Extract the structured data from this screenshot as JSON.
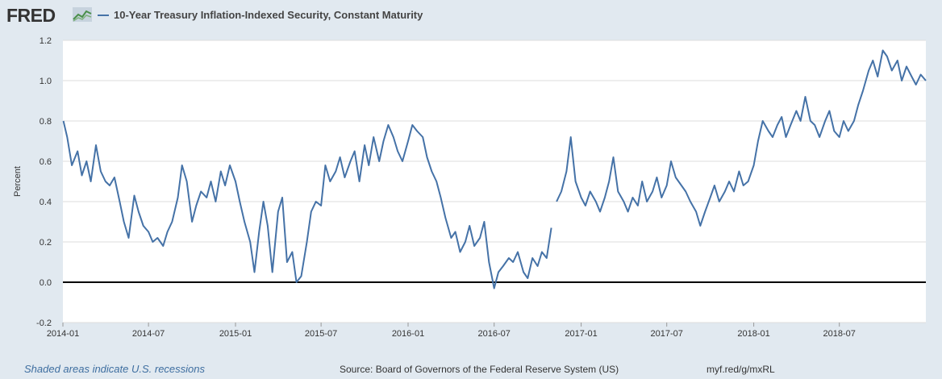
{
  "header": {
    "logo_text": "FRED",
    "logo_icon": "line-chart-icon"
  },
  "colors": {
    "series": "#4572a7",
    "background": "#e1e9f0",
    "plot_background": "#ffffff",
    "gridline": "#dddddd",
    "zero_line": "#000000",
    "recession_note": "#3e6ea0"
  },
  "chart_data": {
    "type": "line",
    "title": "",
    "xlabel": "",
    "ylabel": "Percent",
    "ylim": [
      -0.2,
      1.2
    ],
    "yticks": [
      -0.2,
      0.0,
      0.2,
      0.4,
      0.6,
      0.8,
      1.0,
      1.2
    ],
    "ytick_labels": [
      "-0.2",
      "0.0",
      "0.2",
      "0.4",
      "0.6",
      "0.8",
      "1.0",
      "1.2"
    ],
    "xlim": [
      "2014-01-01",
      "2018-12-31"
    ],
    "xticks": [
      "2014-01",
      "2014-07",
      "2015-01",
      "2015-07",
      "2016-01",
      "2016-07",
      "2017-01",
      "2017-07",
      "2018-01",
      "2018-07"
    ],
    "grid": true,
    "legend": "top-left",
    "reference_line": 0.0,
    "series": [
      {
        "name": "10-Year Treasury Inflation-Indexed Security, Constant Maturity",
        "segments": [
          {
            "x": [
              "2014-01-02",
              "2014-01-10",
              "2014-01-20",
              "2014-02-01",
              "2014-02-10",
              "2014-02-20",
              "2014-03-01",
              "2014-03-12",
              "2014-03-22",
              "2014-04-01",
              "2014-04-10",
              "2014-04-20",
              "2014-05-01",
              "2014-05-10",
              "2014-05-20",
              "2014-06-01",
              "2014-06-10",
              "2014-06-20",
              "2014-07-01",
              "2014-07-10",
              "2014-07-20",
              "2014-08-01",
              "2014-08-10",
              "2014-08-20",
              "2014-09-01",
              "2014-09-10",
              "2014-09-20",
              "2014-10-01",
              "2014-10-10",
              "2014-10-20",
              "2014-11-01",
              "2014-11-10",
              "2014-11-20",
              "2014-12-01",
              "2014-12-10",
              "2014-12-20",
              "2015-01-01",
              "2015-01-10",
              "2015-01-20",
              "2015-02-01",
              "2015-02-10",
              "2015-02-20",
              "2015-03-01",
              "2015-03-10",
              "2015-03-20",
              "2015-04-01",
              "2015-04-10",
              "2015-04-20",
              "2015-05-01",
              "2015-05-10",
              "2015-05-20",
              "2015-06-01",
              "2015-06-10",
              "2015-06-20",
              "2015-07-01",
              "2015-07-10",
              "2015-07-20",
              "2015-08-01",
              "2015-08-10",
              "2015-08-20",
              "2015-09-01",
              "2015-09-10",
              "2015-09-20",
              "2015-10-01",
              "2015-10-10",
              "2015-10-20",
              "2015-11-01",
              "2015-11-10",
              "2015-11-20",
              "2015-12-01",
              "2015-12-10",
              "2015-12-20",
              "2016-01-01",
              "2016-01-10",
              "2016-01-20",
              "2016-02-01",
              "2016-02-10",
              "2016-02-20",
              "2016-03-01",
              "2016-03-10",
              "2016-03-20",
              "2016-04-01",
              "2016-04-10",
              "2016-04-20",
              "2016-05-01",
              "2016-05-10",
              "2016-05-20",
              "2016-06-01",
              "2016-06-10",
              "2016-06-20",
              "2016-07-01",
              "2016-07-10",
              "2016-07-20",
              "2016-08-01",
              "2016-08-10",
              "2016-08-20",
              "2016-09-01",
              "2016-09-10",
              "2016-09-20",
              "2016-10-01",
              "2016-10-10",
              "2016-10-20",
              "2016-10-30"
            ],
            "y": [
              0.8,
              0.72,
              0.58,
              0.65,
              0.53,
              0.6,
              0.5,
              0.68,
              0.55,
              0.5,
              0.48,
              0.52,
              0.4,
              0.3,
              0.22,
              0.43,
              0.35,
              0.28,
              0.25,
              0.2,
              0.22,
              0.18,
              0.25,
              0.3,
              0.42,
              0.58,
              0.5,
              0.3,
              0.38,
              0.45,
              0.42,
              0.5,
              0.4,
              0.55,
              0.48,
              0.58,
              0.5,
              0.4,
              0.3,
              0.2,
              0.05,
              0.25,
              0.4,
              0.28,
              0.05,
              0.35,
              0.42,
              0.1,
              0.15,
              0.0,
              0.03,
              0.2,
              0.35,
              0.4,
              0.38,
              0.58,
              0.5,
              0.55,
              0.62,
              0.52,
              0.6,
              0.65,
              0.5,
              0.68,
              0.58,
              0.72,
              0.6,
              0.7,
              0.78,
              0.72,
              0.65,
              0.6,
              0.7,
              0.78,
              0.75,
              0.72,
              0.62,
              0.55,
              0.5,
              0.42,
              0.32,
              0.22,
              0.25,
              0.15,
              0.2,
              0.28,
              0.18,
              0.22,
              0.3,
              0.1,
              -0.03,
              0.05,
              0.08,
              0.12,
              0.1,
              0.15,
              0.05,
              0.02,
              0.12,
              0.08,
              0.15,
              0.12,
              0.27
            ]
          },
          {
            "x": [
              "2016-11-10",
              "2016-11-20",
              "2016-12-01",
              "2016-12-10",
              "2016-12-20",
              "2017-01-01",
              "2017-01-10",
              "2017-01-20",
              "2017-02-01",
              "2017-02-10",
              "2017-02-20",
              "2017-03-01",
              "2017-03-10",
              "2017-03-20",
              "2017-04-01",
              "2017-04-10",
              "2017-04-20",
              "2017-05-01",
              "2017-05-10",
              "2017-05-20",
              "2017-06-01",
              "2017-06-10",
              "2017-06-20",
              "2017-07-01",
              "2017-07-10",
              "2017-07-20",
              "2017-08-01",
              "2017-08-10",
              "2017-08-20",
              "2017-09-01",
              "2017-09-10",
              "2017-09-20",
              "2017-10-01",
              "2017-10-10",
              "2017-10-20",
              "2017-11-01",
              "2017-11-10",
              "2017-11-20",
              "2017-12-01",
              "2017-12-10",
              "2017-12-20",
              "2018-01-01",
              "2018-01-10",
              "2018-01-20",
              "2018-02-01",
              "2018-02-10",
              "2018-02-20",
              "2018-03-01",
              "2018-03-10",
              "2018-03-20",
              "2018-04-01",
              "2018-04-10",
              "2018-04-20",
              "2018-05-01",
              "2018-05-10",
              "2018-05-20",
              "2018-06-01",
              "2018-06-10",
              "2018-06-20",
              "2018-07-01",
              "2018-07-10",
              "2018-07-20",
              "2018-08-01",
              "2018-08-10",
              "2018-08-20",
              "2018-09-01",
              "2018-09-10",
              "2018-09-20",
              "2018-10-01",
              "2018-10-10",
              "2018-10-20",
              "2018-11-01",
              "2018-11-10",
              "2018-11-20",
              "2018-12-01",
              "2018-12-10",
              "2018-12-20",
              "2018-12-31"
            ],
            "y": [
              0.4,
              0.45,
              0.55,
              0.72,
              0.5,
              0.42,
              0.38,
              0.45,
              0.4,
              0.35,
              0.42,
              0.5,
              0.62,
              0.45,
              0.4,
              0.35,
              0.42,
              0.38,
              0.5,
              0.4,
              0.45,
              0.52,
              0.42,
              0.48,
              0.6,
              0.52,
              0.48,
              0.45,
              0.4,
              0.35,
              0.28,
              0.35,
              0.42,
              0.48,
              0.4,
              0.45,
              0.5,
              0.45,
              0.55,
              0.48,
              0.5,
              0.58,
              0.7,
              0.8,
              0.75,
              0.72,
              0.78,
              0.82,
              0.72,
              0.78,
              0.85,
              0.8,
              0.92,
              0.8,
              0.78,
              0.72,
              0.8,
              0.85,
              0.75,
              0.72,
              0.8,
              0.75,
              0.8,
              0.88,
              0.95,
              1.05,
              1.1,
              1.02,
              1.15,
              1.12,
              1.05,
              1.1,
              1.0,
              1.07,
              1.02,
              0.98,
              1.03,
              1.0
            ]
          }
        ]
      }
    ]
  },
  "footer": {
    "recession_note": "Shaded areas indicate U.S. recessions",
    "source": "Source: Board of Governors of the Federal Reserve System (US)",
    "url": "myf.red/g/mxRL"
  }
}
